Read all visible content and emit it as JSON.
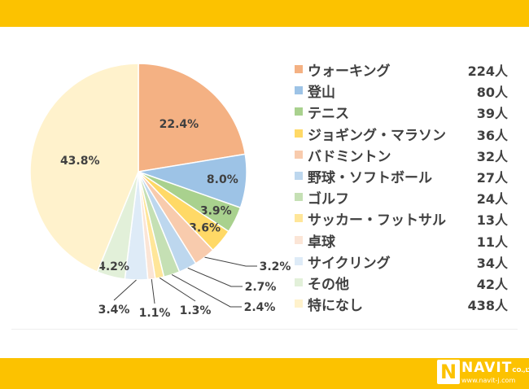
{
  "chart_data": {
    "type": "pie",
    "start_angle_deg": 0,
    "direction": "clockwise",
    "slices": [
      {
        "label": "ウォーキング",
        "count": "224人",
        "value": 22.4,
        "display": "22.4%",
        "color": "#F4B183"
      },
      {
        "label": "登山",
        "count": "80人",
        "value": 8.0,
        "display": "8.0%",
        "color": "#9DC3E6"
      },
      {
        "label": "テニス",
        "count": "39人",
        "value": 3.9,
        "display": "3.9%",
        "color": "#A9D18E"
      },
      {
        "label": "ジョギング・マラソン",
        "count": "36人",
        "value": 3.6,
        "display": "3.6%",
        "color": "#FFD966"
      },
      {
        "label": "バドミントン",
        "count": "32人",
        "value": 3.2,
        "display": "3.2%",
        "color": "#F8CBAD"
      },
      {
        "label": "野球・ソフトボール",
        "count": "27人",
        "value": 2.7,
        "display": "2.7%",
        "color": "#BDD7EE"
      },
      {
        "label": "ゴルフ",
        "count": "24人",
        "value": 2.4,
        "display": "2.4%",
        "color": "#C5E0B4"
      },
      {
        "label": "サッカー・フットサル",
        "count": "13人",
        "value": 1.3,
        "display": "1.3%",
        "color": "#FFE699"
      },
      {
        "label": "卓球",
        "count": "11人",
        "value": 1.1,
        "display": "1.1%",
        "color": "#FBE5D6"
      },
      {
        "label": "サイクリング",
        "count": "34人",
        "value": 3.4,
        "display": "3.4%",
        "color": "#DEEBF7"
      },
      {
        "label": "その他",
        "count": "42人",
        "value": 4.2,
        "display": "4.2%",
        "color": "#E2F0D9"
      },
      {
        "label": "特になし",
        "count": "438人",
        "value": 43.8,
        "display": "43.8%",
        "color": "#FFF2CC"
      }
    ],
    "legend_position": "right"
  },
  "brand": {
    "name": "NAVIT",
    "suffix": "CO.,LTD.",
    "url": "www.navit-j.com",
    "accent_color": "#FCC200"
  }
}
